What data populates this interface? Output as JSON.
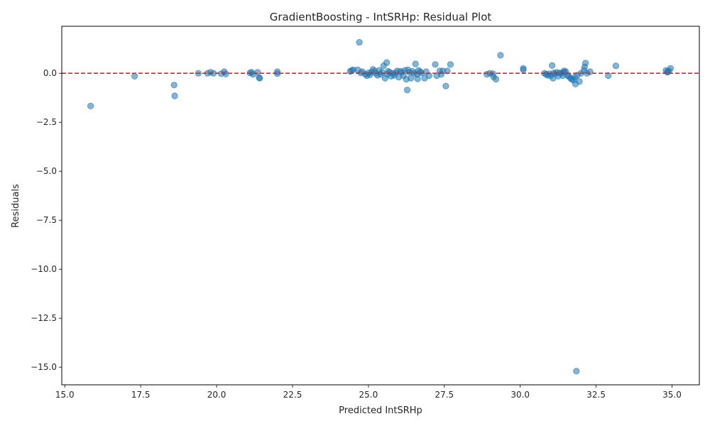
{
  "chart_data": {
    "type": "scatter",
    "title": "GradientBoosting - IntSRHp: Residual Plot",
    "xlabel": "Predicted IntSRHp",
    "ylabel": "Residuals",
    "xlim": [
      14.9,
      35.9
    ],
    "ylim": [
      -15.9,
      2.4
    ],
    "x_ticks": [
      15.0,
      17.5,
      20.0,
      22.5,
      25.0,
      27.5,
      30.0,
      32.5,
      35.0
    ],
    "x_tick_labels": [
      "15.0",
      "17.5",
      "20.0",
      "22.5",
      "25.0",
      "27.5",
      "30.0",
      "32.5",
      "35.0"
    ],
    "y_ticks": [
      0.0,
      -2.5,
      -5.0,
      -7.5,
      -10.0,
      -12.5,
      -15.0
    ],
    "y_tick_labels": [
      "0.0",
      "−2.5",
      "−5.0",
      "−7.5",
      "−10.0",
      "−12.5",
      "−15.0"
    ],
    "grid": false,
    "reference_line": {
      "y": 0.0,
      "style": "dashed",
      "color": "#d62728"
    },
    "point_color": "#1f77b4",
    "point_alpha": 0.55,
    "points": [
      [
        15.85,
        -1.67
      ],
      [
        17.3,
        -0.15
      ],
      [
        18.6,
        -0.6
      ],
      [
        18.62,
        -1.15
      ],
      [
        19.4,
        0.0
      ],
      [
        19.7,
        0.0
      ],
      [
        19.8,
        0.05
      ],
      [
        19.9,
        0.0
      ],
      [
        20.15,
        -0.02
      ],
      [
        20.25,
        0.08
      ],
      [
        20.3,
        -0.03
      ],
      [
        21.1,
        0.02
      ],
      [
        21.15,
        0.05
      ],
      [
        21.2,
        -0.05
      ],
      [
        21.35,
        0.05
      ],
      [
        21.4,
        -0.22
      ],
      [
        21.42,
        -0.25
      ],
      [
        22.0,
        0.08
      ],
      [
        22.0,
        -0.02
      ],
      [
        24.4,
        0.1
      ],
      [
        24.45,
        0.15
      ],
      [
        24.5,
        0.18
      ],
      [
        24.65,
        0.18
      ],
      [
        24.7,
        1.58
      ],
      [
        24.75,
        0.02
      ],
      [
        24.8,
        0.08
      ],
      [
        24.9,
        -0.05
      ],
      [
        24.95,
        -0.12
      ],
      [
        25.0,
        0.02
      ],
      [
        25.05,
        -0.08
      ],
      [
        25.1,
        0.05
      ],
      [
        25.15,
        0.2
      ],
      [
        25.2,
        0.12
      ],
      [
        25.25,
        0.0
      ],
      [
        25.3,
        -0.1
      ],
      [
        25.35,
        0.15
      ],
      [
        25.4,
        -0.05
      ],
      [
        25.45,
        0.05
      ],
      [
        25.5,
        0.38
      ],
      [
        25.55,
        -0.25
      ],
      [
        25.6,
        0.55
      ],
      [
        25.62,
        -0.05
      ],
      [
        25.65,
        0.1
      ],
      [
        25.7,
        0.05
      ],
      [
        25.75,
        -0.15
      ],
      [
        25.8,
        0.0
      ],
      [
        25.85,
        -0.1
      ],
      [
        25.9,
        0.02
      ],
      [
        25.95,
        0.12
      ],
      [
        26.0,
        -0.2
      ],
      [
        26.05,
        0.1
      ],
      [
        26.1,
        0.05
      ],
      [
        26.15,
        -0.12
      ],
      [
        26.2,
        0.15
      ],
      [
        26.25,
        -0.3
      ],
      [
        26.28,
        -0.85
      ],
      [
        26.3,
        0.18
      ],
      [
        26.35,
        0.05
      ],
      [
        26.4,
        -0.25
      ],
      [
        26.45,
        0.1
      ],
      [
        26.5,
        0.0
      ],
      [
        26.55,
        0.48
      ],
      [
        26.6,
        -0.05
      ],
      [
        26.62,
        -0.28
      ],
      [
        26.65,
        0.15
      ],
      [
        26.7,
        0.08
      ],
      [
        26.75,
        0.02
      ],
      [
        26.85,
        -0.25
      ],
      [
        26.9,
        0.08
      ],
      [
        27.0,
        -0.12
      ],
      [
        27.2,
        0.45
      ],
      [
        27.25,
        -0.12
      ],
      [
        27.35,
        0.12
      ],
      [
        27.4,
        -0.05
      ],
      [
        27.45,
        0.12
      ],
      [
        27.55,
        -0.65
      ],
      [
        27.6,
        0.12
      ],
      [
        27.7,
        0.45
      ],
      [
        28.9,
        -0.05
      ],
      [
        29.0,
        0.0
      ],
      [
        29.1,
        -0.02
      ],
      [
        29.12,
        -0.18
      ],
      [
        29.2,
        -0.3
      ],
      [
        29.35,
        0.92
      ],
      [
        30.1,
        0.25
      ],
      [
        30.1,
        0.18
      ],
      [
        30.8,
        0.0
      ],
      [
        30.85,
        -0.05
      ],
      [
        30.9,
        -0.1
      ],
      [
        30.95,
        -0.02
      ],
      [
        31.0,
        -0.12
      ],
      [
        31.05,
        0.4
      ],
      [
        31.08,
        -0.25
      ],
      [
        31.1,
        0.02
      ],
      [
        31.15,
        -0.02
      ],
      [
        31.2,
        0.05
      ],
      [
        31.25,
        -0.15
      ],
      [
        31.3,
        0.02
      ],
      [
        31.35,
        0.0
      ],
      [
        31.4,
        -0.12
      ],
      [
        31.42,
        0.05
      ],
      [
        31.45,
        0.12
      ],
      [
        31.5,
        0.08
      ],
      [
        31.55,
        -0.1
      ],
      [
        31.6,
        -0.15
      ],
      [
        31.65,
        -0.25
      ],
      [
        31.7,
        -0.3
      ],
      [
        31.75,
        -0.35
      ],
      [
        31.8,
        -0.2
      ],
      [
        31.82,
        -0.55
      ],
      [
        31.85,
        -15.2
      ],
      [
        31.88,
        -0.1
      ],
      [
        31.95,
        -0.42
      ],
      [
        32.0,
        0.0
      ],
      [
        32.1,
        0.15
      ],
      [
        32.12,
        0.32
      ],
      [
        32.15,
        0.52
      ],
      [
        32.2,
        0.0
      ],
      [
        32.3,
        0.08
      ],
      [
        32.9,
        -0.12
      ],
      [
        33.15,
        0.38
      ],
      [
        34.8,
        0.15
      ],
      [
        34.85,
        0.05
      ],
      [
        34.9,
        0.12
      ],
      [
        34.95,
        0.25
      ],
      [
        34.85,
        0.08
      ]
    ]
  }
}
